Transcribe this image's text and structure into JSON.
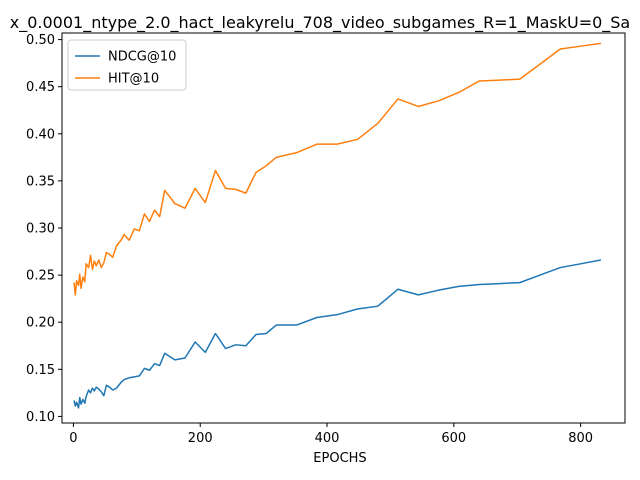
{
  "chart_data": {
    "type": "line",
    "title": "x_0.0001_ntype_2.0_hact_leakyrelu_708_video_subgames_R=1_MaskU=0_Sa",
    "xlabel": "EPOCHS",
    "ylabel": "",
    "xlim": [
      -18,
      870
    ],
    "ylim": [
      0.093,
      0.507
    ],
    "xticks": [
      0,
      200,
      400,
      600,
      800
    ],
    "yticks": [
      0.1,
      0.15,
      0.2,
      0.25,
      0.3,
      0.35,
      0.4,
      0.45,
      0.5
    ],
    "grid": false,
    "legend_position": "top-left",
    "series": [
      {
        "name": "NDCG@10",
        "color": "#1f77b4",
        "x": [
          1,
          3,
          5,
          8,
          10,
          12,
          15,
          18,
          20,
          24,
          27,
          30,
          33,
          36,
          40,
          44,
          48,
          52,
          57,
          62,
          68,
          75,
          80,
          88,
          96,
          104,
          112,
          120,
          128,
          136,
          144,
          160,
          176,
          192,
          208,
          224,
          240,
          256,
          272,
          288,
          304,
          320,
          352,
          384,
          416,
          448,
          480,
          512,
          544,
          576,
          608,
          640,
          672,
          704,
          736,
          768,
          800,
          832
        ],
        "y": [
          0.117,
          0.111,
          0.115,
          0.109,
          0.12,
          0.113,
          0.118,
          0.114,
          0.121,
          0.128,
          0.125,
          0.13,
          0.127,
          0.131,
          0.129,
          0.126,
          0.122,
          0.133,
          0.131,
          0.128,
          0.13,
          0.136,
          0.139,
          0.141,
          0.142,
          0.143,
          0.151,
          0.149,
          0.156,
          0.154,
          0.167,
          0.16,
          0.162,
          0.179,
          0.168,
          0.188,
          0.172,
          0.176,
          0.175,
          0.187,
          0.188,
          0.197,
          0.197,
          0.205,
          0.208,
          0.214,
          0.217,
          0.235,
          0.229,
          0.234,
          0.238,
          0.24,
          0.241,
          0.242,
          0.25,
          0.258,
          0.262,
          0.266
        ]
      },
      {
        "name": "HIT@10",
        "color": "#ff7f0e",
        "x": [
          1,
          3,
          5,
          8,
          10,
          12,
          15,
          18,
          20,
          24,
          27,
          30,
          33,
          36,
          40,
          44,
          48,
          52,
          57,
          62,
          68,
          75,
          80,
          88,
          96,
          104,
          112,
          120,
          128,
          136,
          144,
          160,
          176,
          192,
          208,
          224,
          240,
          256,
          272,
          288,
          304,
          320,
          352,
          384,
          416,
          448,
          480,
          512,
          544,
          576,
          608,
          640,
          672,
          704,
          736,
          768,
          800,
          832
        ],
        "y": [
          0.242,
          0.229,
          0.244,
          0.239,
          0.251,
          0.236,
          0.248,
          0.243,
          0.262,
          0.258,
          0.271,
          0.256,
          0.265,
          0.26,
          0.266,
          0.258,
          0.263,
          0.274,
          0.272,
          0.269,
          0.281,
          0.287,
          0.293,
          0.287,
          0.299,
          0.297,
          0.315,
          0.307,
          0.319,
          0.312,
          0.34,
          0.326,
          0.321,
          0.342,
          0.327,
          0.361,
          0.342,
          0.341,
          0.337,
          0.359,
          0.366,
          0.375,
          0.38,
          0.389,
          0.389,
          0.394,
          0.411,
          0.437,
          0.429,
          0.435,
          0.444,
          0.456,
          0.457,
          0.458,
          0.474,
          0.49,
          0.493,
          0.496
        ]
      }
    ]
  }
}
